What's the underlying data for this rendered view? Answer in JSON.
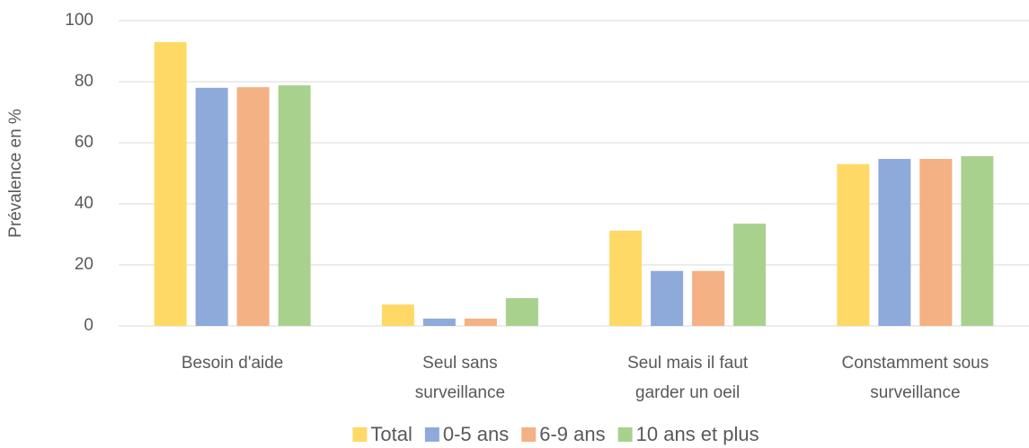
{
  "chart_data": {
    "type": "bar",
    "ylabel": "Prévalence en %",
    "categories": [
      [
        "Besoin d'aide"
      ],
      [
        "Seul sans",
        "surveillance"
      ],
      [
        "Seul mais il faut",
        "garder un oeil"
      ],
      [
        "Constamment sous",
        "surveillance"
      ]
    ],
    "series": [
      {
        "name": "Total",
        "color": "#ffd966",
        "values": [
          93,
          7,
          31.2,
          53
        ]
      },
      {
        "name": "0-5 ans",
        "color": "#8eaadb",
        "values": [
          78,
          2.4,
          18,
          54.7
        ]
      },
      {
        "name": "6-9 ans",
        "color": "#f4b183",
        "values": [
          78.2,
          2.4,
          18,
          54.7
        ]
      },
      {
        "name": "10 ans et plus",
        "color": "#a9d18e",
        "values": [
          78.8,
          9.1,
          33.5,
          55.6
        ]
      }
    ],
    "ylim": [
      0,
      100
    ],
    "yticks": [
      0,
      20,
      40,
      60,
      80,
      100
    ],
    "grid": true,
    "legend": "bottom"
  }
}
